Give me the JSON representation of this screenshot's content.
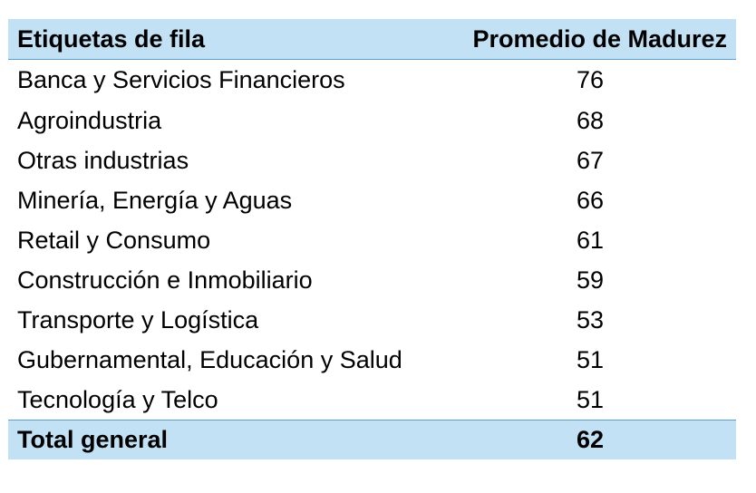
{
  "table": {
    "header": {
      "row_label": "Etiquetas de fila",
      "value_label": "Promedio de Madurez"
    },
    "rows": [
      {
        "label": "Banca y Servicios Financieros",
        "value": "76"
      },
      {
        "label": "Agroindustria",
        "value": "68"
      },
      {
        "label": "Otras industrias",
        "value": "67"
      },
      {
        "label": "Minería, Energía y Aguas",
        "value": "66"
      },
      {
        "label": "Retail y Consumo",
        "value": "61"
      },
      {
        "label": "Construcción e Inmobiliario",
        "value": "59"
      },
      {
        "label": "Transporte y Logística",
        "value": "53"
      },
      {
        "label": "Gubernamental, Educación y Salud",
        "value": "51"
      },
      {
        "label": "Tecnología y Telco",
        "value": "51"
      }
    ],
    "total": {
      "label": "Total general",
      "value": "62"
    }
  },
  "colors": {
    "header_fill": "#c2e1f4",
    "border": "#5a9fd0"
  }
}
